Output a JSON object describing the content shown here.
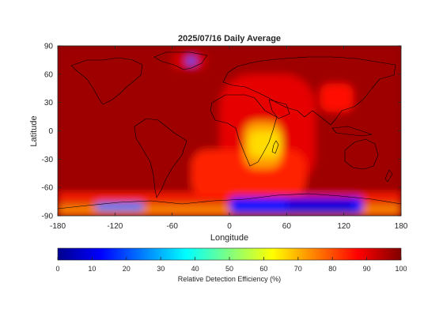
{
  "chart_data": {
    "type": "heatmap",
    "title": "2025/07/16 Daily Average",
    "xlabel": "Longitude",
    "ylabel": "Latitude",
    "xlim": [
      -180,
      180
    ],
    "ylim": [
      -90,
      90
    ],
    "x_ticks": [
      "-180",
      "-120",
      "-60",
      "0",
      "60",
      "120",
      "180"
    ],
    "y_ticks": [
      "90",
      "60",
      "30",
      "0",
      "-30",
      "-60",
      "-90"
    ],
    "colorbar": {
      "label": "Relative Detection Efficiency (%)",
      "range": [
        0,
        100
      ],
      "ticks": [
        "0",
        "10",
        "20",
        "30",
        "40",
        "50",
        "60",
        "70",
        "80",
        "90",
        "100"
      ],
      "colormap": "jet"
    },
    "regions": [
      {
        "lon": [
          -180,
          180
        ],
        "lat": [
          -90,
          90
        ],
        "value": 97
      },
      {
        "lon": [
          -10,
          90
        ],
        "lat": [
          -60,
          60
        ],
        "value": 90
      },
      {
        "lon": [
          -40,
          80
        ],
        "lat": [
          -70,
          -20
        ],
        "value": 84
      },
      {
        "lon": [
          15,
          55
        ],
        "lat": [
          -40,
          10
        ],
        "value": 72
      },
      {
        "lon": [
          20,
          55
        ],
        "lat": [
          -28,
          0
        ],
        "value": 66
      },
      {
        "lon": [
          95,
          130
        ],
        "lat": [
          20,
          50
        ],
        "value": 86
      },
      {
        "lon": [
          -180,
          180
        ],
        "lat": [
          -75,
          -66
        ],
        "value": 85
      },
      {
        "lon": [
          -60,
          -25
        ],
        "lat": [
          65,
          83
        ],
        "value": 92
      },
      {
        "lon": [
          -45,
          -35
        ],
        "lat": [
          70,
          78
        ],
        "value": 20
      },
      {
        "lon": [
          -180,
          180
        ],
        "lat": [
          -90,
          -78
        ],
        "value": 75
      },
      {
        "lon": [
          -140,
          -90
        ],
        "lat": [
          -85,
          -76
        ],
        "value": 25
      },
      {
        "lon": [
          0,
          140
        ],
        "lat": [
          -88,
          -70
        ],
        "value": 15
      },
      {
        "lon": [
          60,
          130
        ],
        "lat": [
          -86,
          -72
        ],
        "value": 8
      }
    ]
  }
}
